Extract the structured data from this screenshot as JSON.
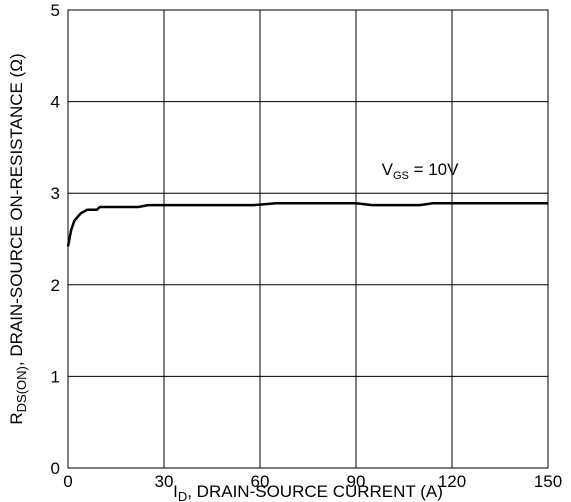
{
  "chart_data": {
    "type": "line",
    "x": [
      0,
      1,
      2,
      4,
      6,
      9,
      10,
      22,
      25,
      58,
      65,
      90,
      95,
      110,
      114,
      150
    ],
    "series": [
      {
        "name": null,
        "color": "#000000",
        "values": [
          2.42,
          2.6,
          2.7,
          2.78,
          2.82,
          2.82,
          2.85,
          2.85,
          2.87,
          2.87,
          2.89,
          2.89,
          2.87,
          2.87,
          2.89,
          2.89
        ]
      }
    ],
    "xlim": [
      0,
      150
    ],
    "xticks": [
      0,
      30,
      60,
      90,
      120,
      150
    ],
    "ylim": [
      0,
      5
    ],
    "yticks": [
      0,
      1,
      2,
      3,
      4,
      5
    ],
    "grid": true,
    "xlabel": {
      "main": "I",
      "sub": "D",
      "rest": ", DRAIN-SOURCE CURRENT (A)"
    },
    "ylabel": {
      "main": "R",
      "sub": "DS(ON)",
      "rest": ", DRAIN-SOURCE ON-RESISTANCE (Ω)"
    },
    "annotation": {
      "main": "V",
      "sub": "GS",
      "rest": " = 10V"
    }
  }
}
